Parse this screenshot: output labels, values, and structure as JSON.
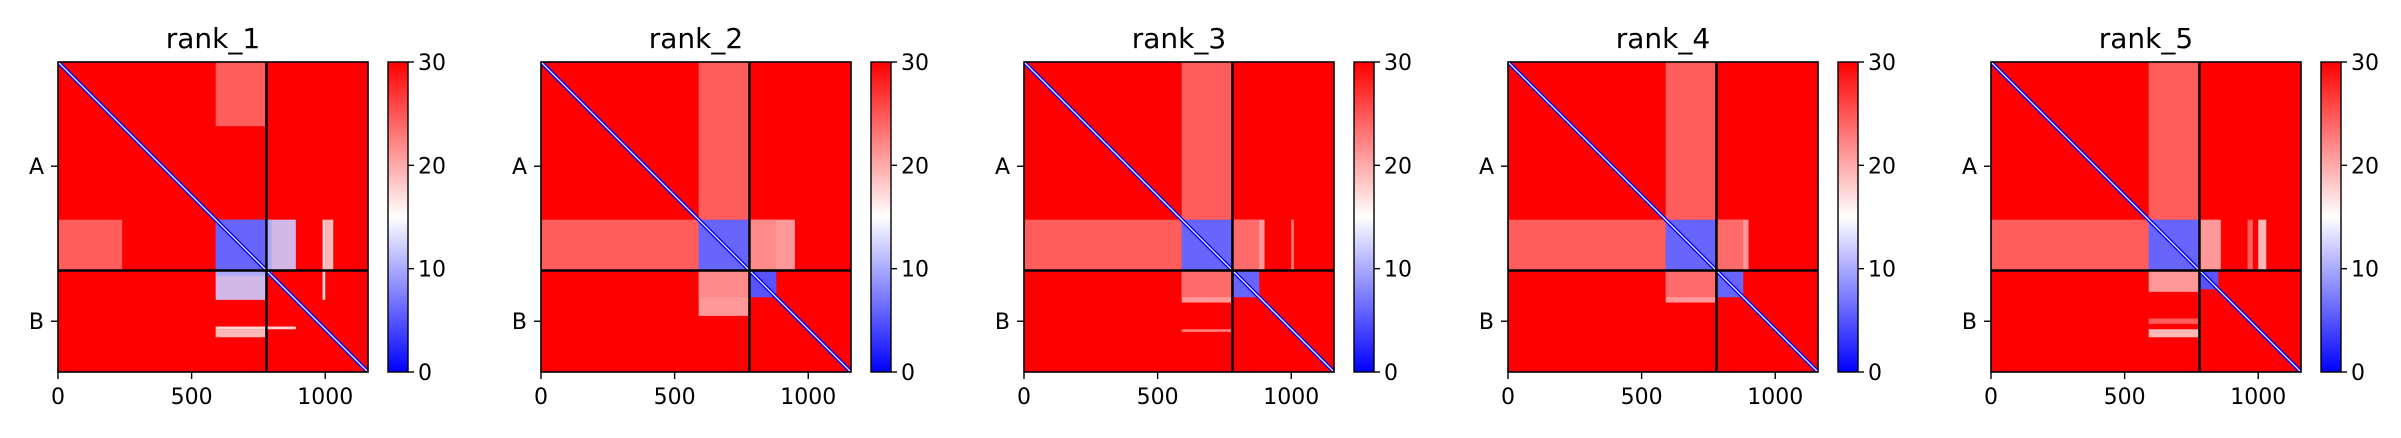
{
  "colors": {
    "low": "#0000ff",
    "mid": "#ffffff",
    "high": "#ff0000",
    "axis": "#000000",
    "chain_line": "#000000"
  },
  "chart_data": [
    {
      "type": "heatmap",
      "title": "rank_1",
      "xlim": [
        0,
        1160
      ],
      "ylim": [
        1160,
        0
      ],
      "x_ticks": [
        0,
        500,
        1000
      ],
      "x_tick_labels": [
        "0",
        "500",
        "1000"
      ],
      "chain_boundary": 780,
      "chains": [
        {
          "label": "A",
          "center": 390
        },
        {
          "label": "B",
          "center": 970
        }
      ],
      "colorbar": {
        "range": [
          0,
          30
        ],
        "ticks": [
          0,
          10,
          20,
          30
        ],
        "tick_labels": [
          "0",
          "10",
          "20",
          "30"
        ],
        "colormap": "bwr"
      },
      "diagonal_value": 0,
      "background_value": 30,
      "patches": [
        {
          "x": [
            590,
            780
          ],
          "y": [
            590,
            780
          ],
          "value": 6
        },
        {
          "x": [
            780,
            890
          ],
          "y": [
            590,
            780
          ],
          "value": 12
        },
        {
          "x": [
            1000,
            1030
          ],
          "y": [
            590,
            780
          ],
          "value": 18
        },
        {
          "x": [
            0,
            240
          ],
          "y": [
            590,
            780
          ],
          "value": 24
        },
        {
          "x": [
            590,
            780
          ],
          "y": [
            780,
            800
          ],
          "value": 10
        },
        {
          "x": [
            780,
            800
          ],
          "y": [
            780,
            800
          ],
          "value": 10
        },
        {
          "x": [
            590,
            890
          ],
          "y": [
            990,
            1000
          ],
          "value": 16
        }
      ]
    },
    {
      "type": "heatmap",
      "title": "rank_2",
      "xlim": [
        0,
        1160
      ],
      "ylim": [
        1160,
        0
      ],
      "x_ticks": [
        0,
        500,
        1000
      ],
      "x_tick_labels": [
        "0",
        "500",
        "1000"
      ],
      "chain_boundary": 780,
      "chains": [
        {
          "label": "A",
          "center": 390
        },
        {
          "label": "B",
          "center": 970
        }
      ],
      "colorbar": {
        "range": [
          0,
          30
        ],
        "ticks": [
          0,
          10,
          20,
          30
        ],
        "tick_labels": [
          "0",
          "10",
          "20",
          "30"
        ],
        "colormap": "bwr"
      },
      "diagonal_value": 0,
      "background_value": 30,
      "patches": [
        {
          "x": [
            590,
            780
          ],
          "y": [
            590,
            780
          ],
          "value": 6
        },
        {
          "x": [
            780,
            950
          ],
          "y": [
            590,
            780
          ],
          "value": 20
        },
        {
          "x": [
            0,
            590
          ],
          "y": [
            590,
            780
          ],
          "value": 24
        },
        {
          "x": [
            590,
            780
          ],
          "y": [
            780,
            880
          ],
          "value": 22
        },
        {
          "x": [
            780,
            880
          ],
          "y": [
            780,
            880
          ],
          "value": 5
        }
      ]
    },
    {
      "type": "heatmap",
      "title": "rank_3",
      "xlim": [
        0,
        1160
      ],
      "ylim": [
        1160,
        0
      ],
      "x_ticks": [
        0,
        500,
        1000
      ],
      "x_tick_labels": [
        "0",
        "500",
        "1000"
      ],
      "chain_boundary": 780,
      "chains": [
        {
          "label": "A",
          "center": 390
        },
        {
          "label": "B",
          "center": 970
        }
      ],
      "colorbar": {
        "range": [
          0,
          30
        ],
        "ticks": [
          0,
          10,
          20,
          30
        ],
        "tick_labels": [
          "0",
          "10",
          "20",
          "30"
        ],
        "colormap": "bwr"
      },
      "diagonal_value": 0,
      "background_value": 30,
      "patches": [
        {
          "x": [
            590,
            780
          ],
          "y": [
            590,
            780
          ],
          "value": 6
        },
        {
          "x": [
            780,
            900
          ],
          "y": [
            590,
            780
          ],
          "value": 20
        },
        {
          "x": [
            0,
            590
          ],
          "y": [
            590,
            780
          ],
          "value": 24
        },
        {
          "x": [
            590,
            780
          ],
          "y": [
            780,
            880
          ],
          "value": 24
        },
        {
          "x": [
            780,
            880
          ],
          "y": [
            780,
            880
          ],
          "value": 6
        },
        {
          "x": [
            590,
            780
          ],
          "y": [
            1000,
            1010
          ],
          "value": 22
        }
      ]
    },
    {
      "type": "heatmap",
      "title": "rank_4",
      "xlim": [
        0,
        1160
      ],
      "ylim": [
        1160,
        0
      ],
      "x_ticks": [
        0,
        500,
        1000
      ],
      "x_tick_labels": [
        "0",
        "500",
        "1000"
      ],
      "chain_boundary": 780,
      "chains": [
        {
          "label": "A",
          "center": 390
        },
        {
          "label": "B",
          "center": 970
        }
      ],
      "colorbar": {
        "range": [
          0,
          30
        ],
        "ticks": [
          0,
          10,
          20,
          30
        ],
        "tick_labels": [
          "0",
          "10",
          "20",
          "30"
        ],
        "colormap": "bwr"
      },
      "diagonal_value": 0,
      "background_value": 30,
      "patches": [
        {
          "x": [
            590,
            780
          ],
          "y": [
            590,
            780
          ],
          "value": 6
        },
        {
          "x": [
            780,
            900
          ],
          "y": [
            590,
            780
          ],
          "value": 20
        },
        {
          "x": [
            0,
            590
          ],
          "y": [
            590,
            780
          ],
          "value": 24
        },
        {
          "x": [
            590,
            780
          ],
          "y": [
            780,
            880
          ],
          "value": 24
        },
        {
          "x": [
            780,
            880
          ],
          "y": [
            780,
            880
          ],
          "value": 6
        }
      ]
    },
    {
      "type": "heatmap",
      "title": "rank_5",
      "xlim": [
        0,
        1160
      ],
      "ylim": [
        1160,
        0
      ],
      "x_ticks": [
        0,
        500,
        1000
      ],
      "x_tick_labels": [
        "0",
        "500",
        "1000"
      ],
      "chain_boundary": 780,
      "chains": [
        {
          "label": "A",
          "center": 390
        },
        {
          "label": "B",
          "center": 970
        }
      ],
      "colorbar": {
        "range": [
          0,
          30
        ],
        "ticks": [
          0,
          10,
          20,
          30
        ],
        "tick_labels": [
          "0",
          "10",
          "20",
          "30"
        ],
        "colormap": "bwr"
      },
      "diagonal_value": 0,
      "background_value": 30,
      "patches": [
        {
          "x": [
            590,
            780
          ],
          "y": [
            590,
            780
          ],
          "value": 6
        },
        {
          "x": [
            780,
            860
          ],
          "y": [
            590,
            780
          ],
          "value": 20
        },
        {
          "x": [
            1000,
            1030
          ],
          "y": [
            590,
            780
          ],
          "value": 18
        },
        {
          "x": [
            0,
            590
          ],
          "y": [
            590,
            780
          ],
          "value": 24
        },
        {
          "x": [
            780,
            850
          ],
          "y": [
            780,
            850
          ],
          "value": 5
        },
        {
          "x": [
            590,
            780
          ],
          "y": [
            960,
            980
          ],
          "value": 24
        }
      ]
    }
  ]
}
